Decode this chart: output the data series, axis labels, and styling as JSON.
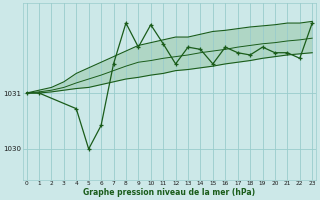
{
  "xlabel": "Graphe pression niveau de la mer (hPa)",
  "background_color": "#cce8e8",
  "plot_bg_color": "#cce8e8",
  "grid_color": "#99cccc",
  "line_color": "#1a5c1a",
  "fill_color": "#4a9a4a",
  "x_ticks": [
    0,
    1,
    2,
    3,
    4,
    5,
    6,
    7,
    8,
    9,
    10,
    11,
    12,
    13,
    14,
    15,
    16,
    17,
    18,
    19,
    20,
    21,
    22,
    23
  ],
  "ylim": [
    1029.45,
    1032.6
  ],
  "xlim": [
    -0.3,
    23.3
  ],
  "yticks": [
    1030,
    1031
  ],
  "series_upper": [
    1031.0,
    1031.05,
    1031.1,
    1031.2,
    1031.35,
    1031.45,
    1031.55,
    1031.65,
    1031.75,
    1031.85,
    1031.9,
    1031.95,
    1032.0,
    1032.0,
    1032.05,
    1032.1,
    1032.12,
    1032.15,
    1032.18,
    1032.2,
    1032.22,
    1032.25,
    1032.25,
    1032.28
  ],
  "series_lower": [
    1031.0,
    1031.0,
    1031.02,
    1031.05,
    1031.08,
    1031.1,
    1031.15,
    1031.2,
    1031.25,
    1031.28,
    1031.32,
    1031.35,
    1031.4,
    1031.42,
    1031.45,
    1031.48,
    1031.52,
    1031.55,
    1031.58,
    1031.62,
    1031.65,
    1031.68,
    1031.7,
    1031.72
  ],
  "series_mid": [
    1031.0,
    1031.02,
    1031.05,
    1031.1,
    1031.18,
    1031.25,
    1031.32,
    1031.4,
    1031.48,
    1031.55,
    1031.58,
    1031.62,
    1031.65,
    1031.68,
    1031.72,
    1031.75,
    1031.78,
    1031.82,
    1031.85,
    1031.88,
    1031.9,
    1031.93,
    1031.95,
    1031.98
  ],
  "series_zigzag_x": [
    0,
    1,
    4,
    5,
    6,
    7,
    8,
    9,
    10,
    11,
    12,
    13,
    14,
    15,
    16,
    17,
    18,
    19,
    20,
    21,
    22,
    23
  ],
  "series_zigzag_y": [
    1031.0,
    1031.0,
    1030.72,
    1030.0,
    1030.42,
    1031.52,
    1032.25,
    1031.82,
    1032.22,
    1031.88,
    1031.52,
    1031.82,
    1031.78,
    1031.52,
    1031.82,
    1031.72,
    1031.68,
    1031.82,
    1031.72,
    1031.72,
    1031.62,
    1032.25
  ]
}
